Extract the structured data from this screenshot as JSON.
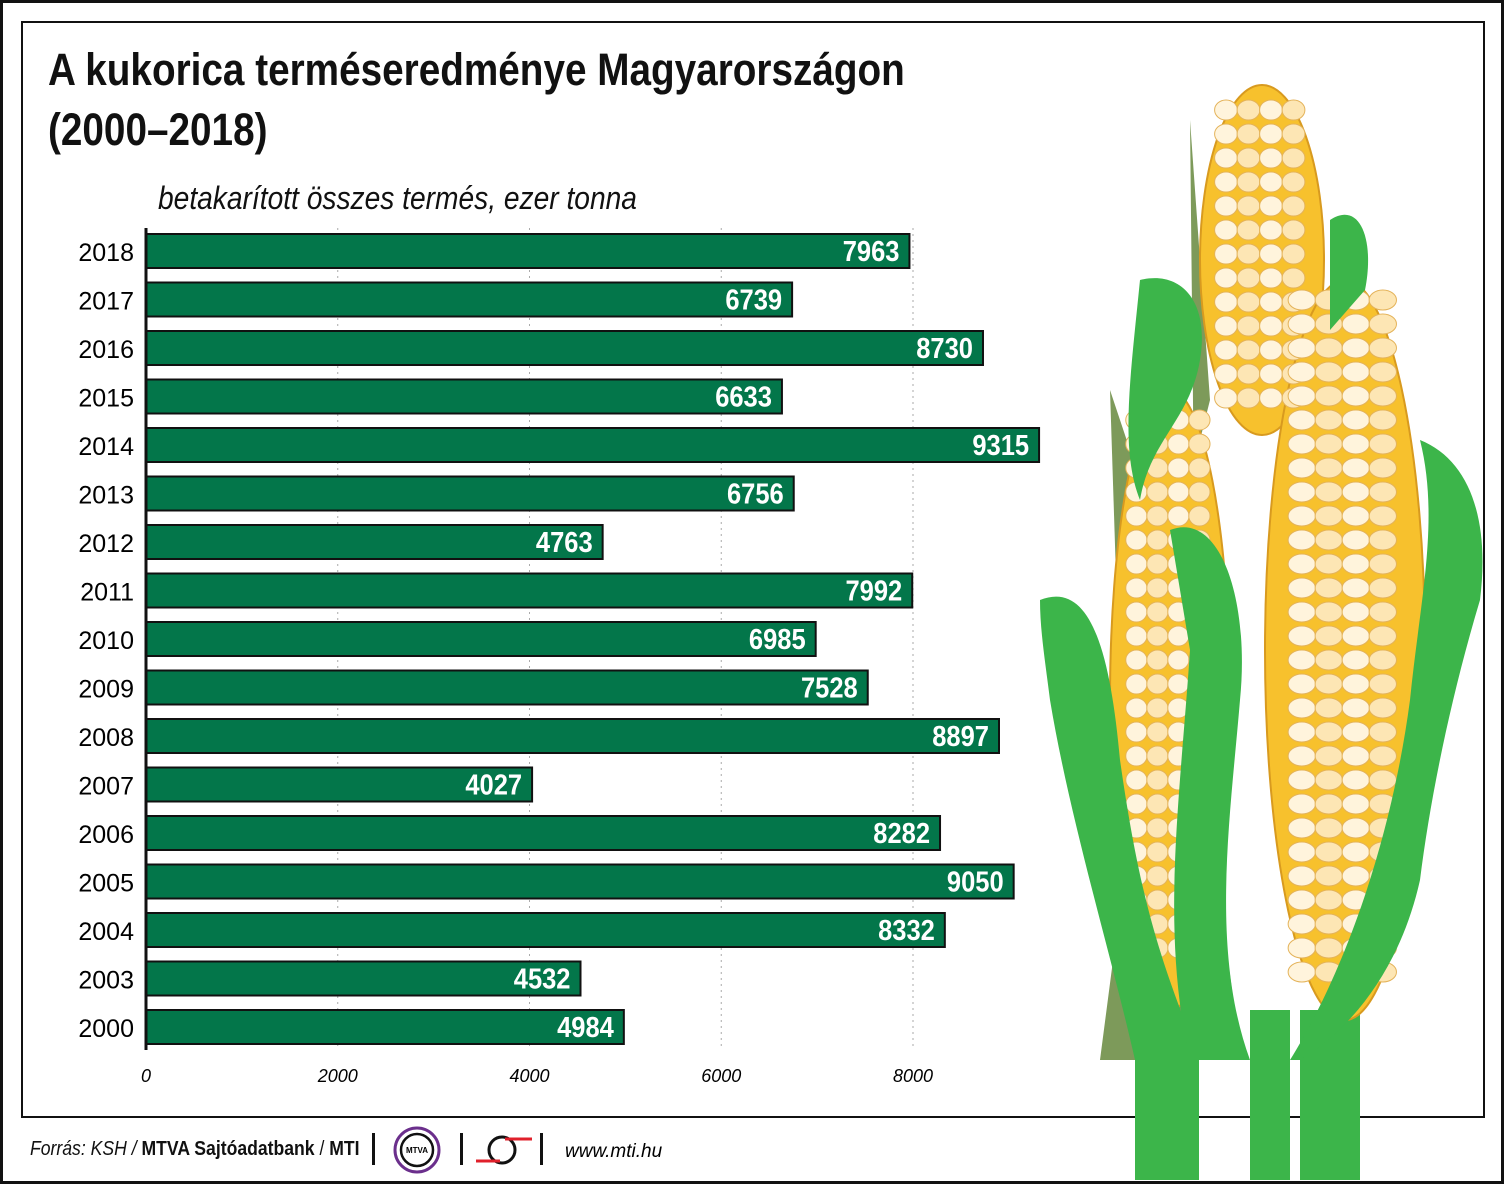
{
  "chart_data": {
    "type": "bar",
    "orientation": "horizontal",
    "title": "A kukorica terméseredménye Magyarországon (2000–2018)",
    "subtitle": "betakarított összes termés, ezer tonna",
    "categories": [
      "2018",
      "2017",
      "2016",
      "2015",
      "2014",
      "2013",
      "2012",
      "2011",
      "2010",
      "2009",
      "2008",
      "2007",
      "2006",
      "2005",
      "2004",
      "2003",
      "2000"
    ],
    "values": [
      7963,
      6739,
      8730,
      6633,
      9315,
      6756,
      4763,
      7992,
      6985,
      7528,
      8897,
      4027,
      8282,
      9050,
      8332,
      4532,
      4984
    ],
    "xlim": [
      0,
      10000
    ],
    "xticks": [
      "0",
      "2000",
      "4000",
      "6000",
      "8000"
    ],
    "grid": "vertical dotted",
    "bar_color": "#03764a"
  },
  "title_line1": "A kukorica terméseredménye Magyarországon",
  "title_line2": "(2000–2018)",
  "footer": {
    "source_prefix": "Forrás: KSH / ",
    "source_bold": "MTVA Sajtóadatbank",
    "sep": " / ",
    "mti": "MTI",
    "mtva_logo": "MTVA",
    "url": "www.mti.hu"
  }
}
